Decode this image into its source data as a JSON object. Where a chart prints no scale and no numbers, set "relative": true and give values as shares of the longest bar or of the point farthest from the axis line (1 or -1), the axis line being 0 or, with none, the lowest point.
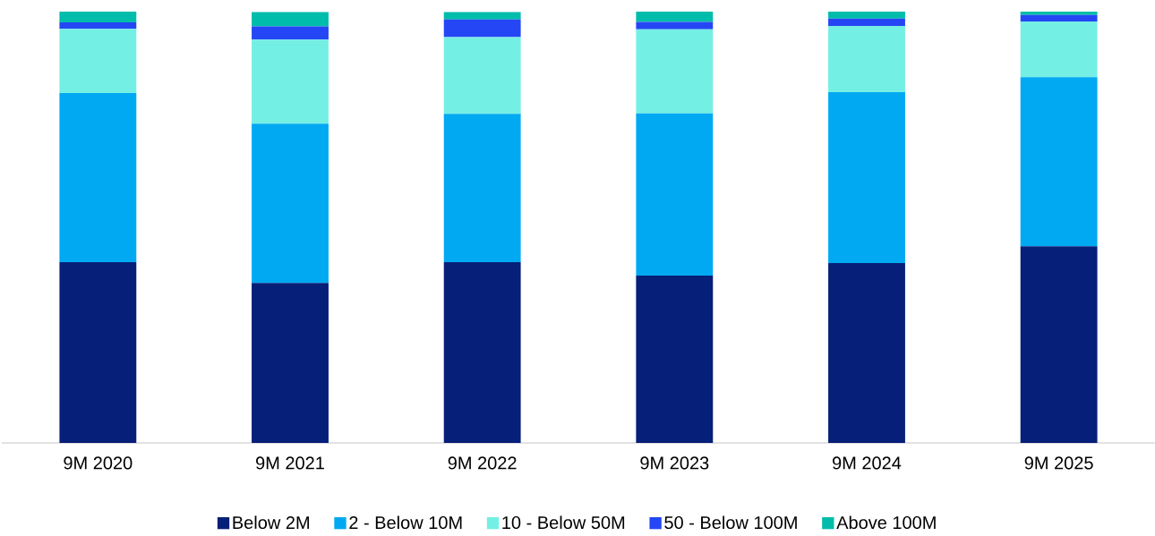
{
  "chart_data": {
    "type": "bar",
    "stacked": true,
    "relative": true,
    "legend": "bottom",
    "categories": [
      "9M 2020",
      "9M 2021",
      "9M 2022",
      "9M 2023",
      "9M 2024",
      "9M 2025"
    ],
    "series": [
      {
        "name": "Below 2M",
        "color": "#061f78",
        "values": [
          0.419,
          0.371,
          0.419,
          0.388,
          0.417,
          0.456
        ]
      },
      {
        "name": "2 - Below 10M",
        "color": "#00a9f1",
        "values": [
          0.392,
          0.369,
          0.344,
          0.376,
          0.396,
          0.392
        ]
      },
      {
        "name": "10 - Below 50M",
        "color": "#74efe4",
        "values": [
          0.149,
          0.195,
          0.178,
          0.195,
          0.154,
          0.129
        ]
      },
      {
        "name": "50 - Below 100M",
        "color": "#2546f5",
        "values": [
          0.015,
          0.031,
          0.041,
          0.017,
          0.017,
          0.015
        ]
      },
      {
        "name": "Above 100M",
        "color": "#00bcaa",
        "values": [
          0.025,
          0.033,
          0.017,
          0.024,
          0.016,
          0.008
        ]
      }
    ]
  }
}
